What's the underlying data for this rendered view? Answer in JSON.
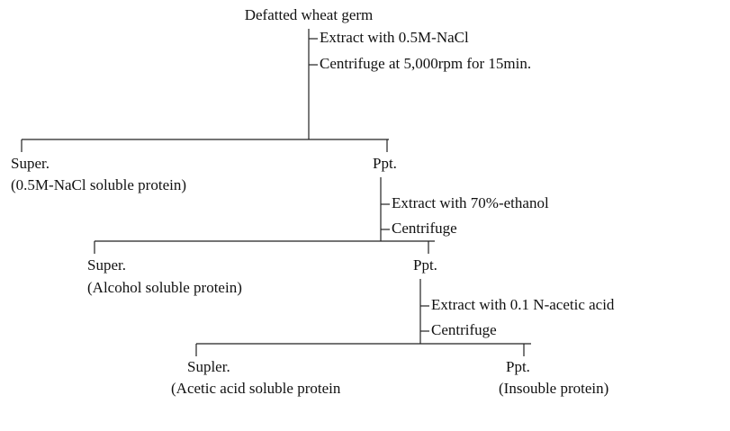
{
  "root": "Defatted wheat germ",
  "stages": [
    {
      "steps": [
        "Extract with 0.5M-NaCl",
        "Centrifuge at 5,000rpm for 15min."
      ],
      "super": {
        "label": "Super.",
        "desc": "(0.5M-NaCl soluble protein)"
      },
      "ppt": {
        "label": "Ppt."
      }
    },
    {
      "steps": [
        "Extract with 70%-ethanol",
        "Centrifuge"
      ],
      "super": {
        "label": "Super.",
        "desc": "(Alcohol soluble protein)"
      },
      "ppt": {
        "label": "Ppt."
      }
    },
    {
      "steps": [
        "Extract with 0.1 N-acetic acid",
        "Centrifuge"
      ],
      "super": {
        "label": "Supler.",
        "desc": "(Acetic acid soluble protein"
      },
      "ppt": {
        "label": "Ppt.",
        "desc": "(Insouble protein)"
      }
    }
  ]
}
